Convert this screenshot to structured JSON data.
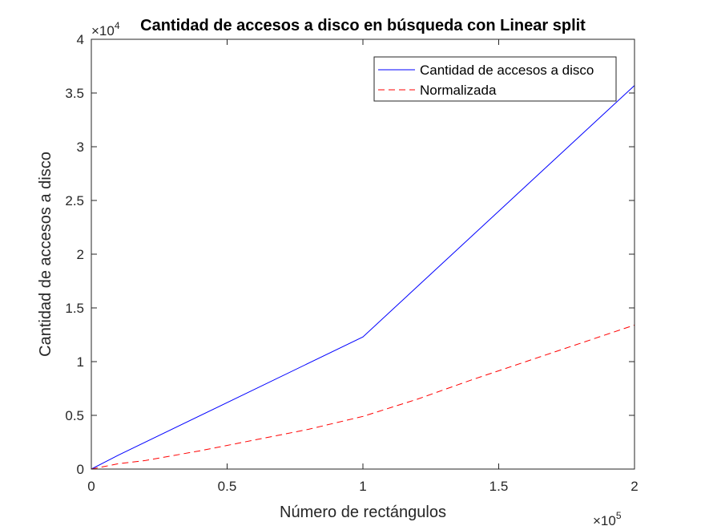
{
  "chart_data": {
    "type": "line",
    "title": "Cantidad de accesos a disco en búsqueda con Linear split",
    "xlabel": "Número de rectángulos",
    "ylabel": "Cantidad de accesos a disco",
    "x_multiplier": {
      "base": "×10",
      "exponent": "5"
    },
    "y_multiplier": {
      "base": "×10",
      "exponent": "4"
    },
    "xlim": [
      0,
      2
    ],
    "ylim": [
      0,
      4
    ],
    "x_ticks": [
      "0",
      "0.5",
      "1",
      "1.5",
      "2"
    ],
    "y_ticks": [
      "0",
      "0.5",
      "1",
      "1.5",
      "2",
      "2.5",
      "3",
      "3.5",
      "4"
    ],
    "x_tick_values": [
      0,
      0.5,
      1,
      1.5,
      2
    ],
    "y_tick_values": [
      0,
      0.5,
      1,
      1.5,
      2,
      2.5,
      3,
      3.5,
      4
    ],
    "grid": false,
    "legend_position": "top-right",
    "series": [
      {
        "name": "Cantidad de accesos a disco",
        "color": "#0000ff",
        "style": "solid",
        "x": [
          0,
          0.1,
          1,
          2
        ],
        "y": [
          0,
          0.13,
          1.23,
          3.57
        ]
      },
      {
        "name": "Normalizada",
        "color": "#ff0000",
        "style": "dashed",
        "x": [
          0,
          0.1,
          0.2,
          0.4,
          0.6,
          0.8,
          1,
          1.2,
          1.4,
          1.6,
          1.8,
          2
        ],
        "y": [
          0,
          0.05,
          0.08,
          0.17,
          0.27,
          0.37,
          0.49,
          0.65,
          0.83,
          1.0,
          1.17,
          1.34
        ]
      }
    ]
  }
}
